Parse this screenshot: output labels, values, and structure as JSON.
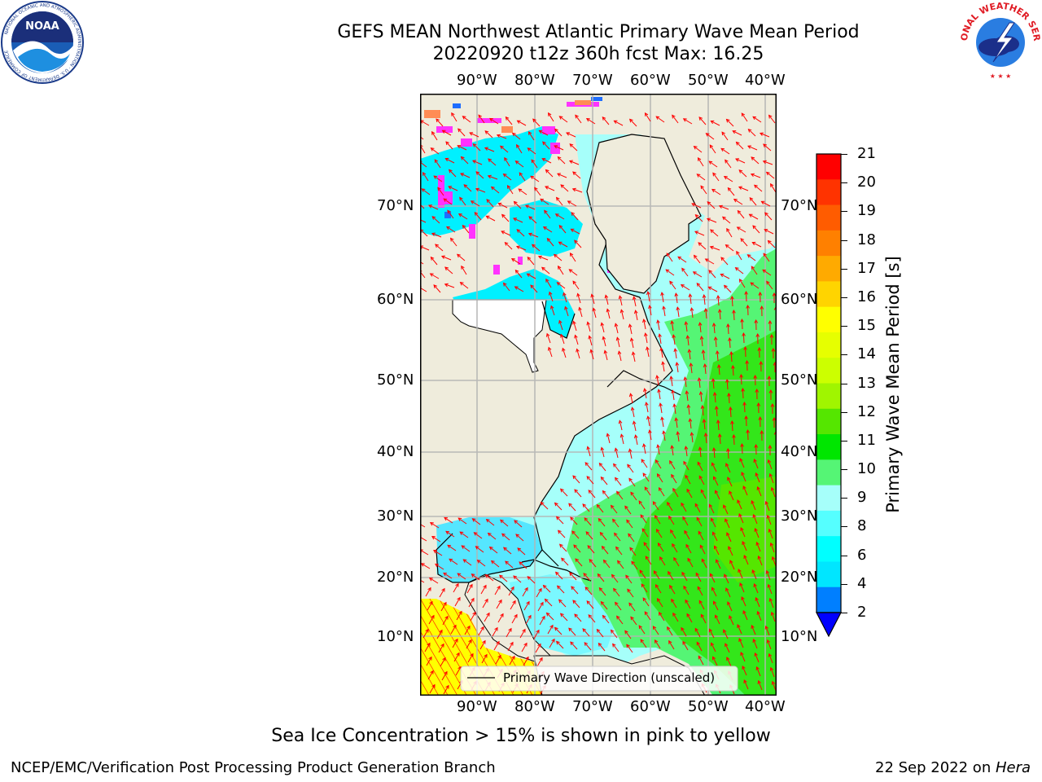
{
  "header": {
    "title_line1": "GEFS MEAN Northwest Atlantic Primary Wave Mean Period",
    "title_line2": "20220920 t12z 360h fcst   Max: 16.25"
  },
  "logos": {
    "left": "NOAA",
    "left_ring": "NATIONAL OCEANIC AND ATMOSPHERIC ADMINISTRATION · U.S. DEPARTMENT OF COMMERCE",
    "right_ring": "NATIONAL WEATHER SERVICE"
  },
  "map": {
    "lon_labels": [
      "90°W",
      "80°W",
      "70°W",
      "60°W",
      "50°W",
      "40°W"
    ],
    "lat_labels": [
      "70°N",
      "60°N",
      "50°N",
      "40°N",
      "30°N",
      "20°N",
      "10°N"
    ],
    "legend_label": "Primary Wave Direction (unscaled)",
    "colors": {
      "land": "#efecdc",
      "ocean_light": "#a6fffa",
      "ocean_cyan": "#00f0ff",
      "green_light": "#55f575",
      "green": "#33e61a",
      "yellow": "#ffff00",
      "vector": "#ff0000",
      "ice_pink": "#ff33ff"
    }
  },
  "colorbar": {
    "title": "Primary Wave Mean Period [s]",
    "ticks": [
      "21",
      "20",
      "19",
      "18",
      "17",
      "16",
      "15",
      "14",
      "13",
      "12",
      "11",
      "10",
      "9",
      "8",
      "6",
      "4",
      "2"
    ],
    "colors": [
      "#ff0000",
      "#ff3300",
      "#ff5c00",
      "#ff8000",
      "#ffaa00",
      "#ffd400",
      "#ffff00",
      "#e6ff00",
      "#ccff00",
      "#a0f500",
      "#55e600",
      "#00e600",
      "#55f575",
      "#a6fffa",
      "#55ffff",
      "#00ffff",
      "#00e6ff",
      "#007fff"
    ],
    "extend_color": "#0000ff"
  },
  "caption": "Sea Ice Concentration > 15% is shown in pink to yellow",
  "footer": {
    "left": "NCEP/EMC/Verification Post Processing Product Generation Branch",
    "right_date": "22 Sep 2022 on ",
    "right_host": "Hera"
  }
}
